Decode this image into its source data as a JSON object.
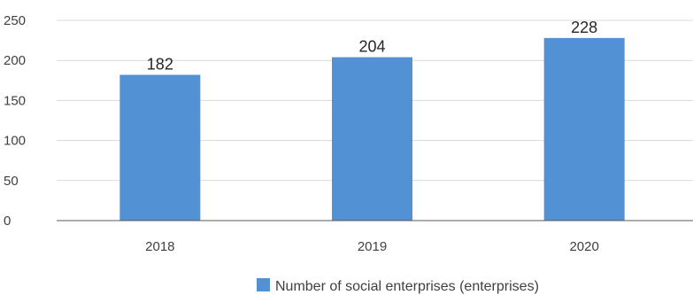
{
  "chart_data": {
    "type": "bar",
    "title": "",
    "xlabel": "",
    "ylabel": "",
    "categories": [
      "2018",
      "2019",
      "2020"
    ],
    "series": [
      {
        "name": "Number of social enterprises (enterprises)",
        "values": [
          182,
          204,
          228
        ],
        "color": "#5291D3"
      }
    ],
    "ylim": [
      0,
      250
    ],
    "yticks": [
      0,
      50,
      100,
      150,
      200,
      250
    ],
    "grid": true,
    "legend_position": "bottom-center",
    "data_labels": true
  },
  "colors": {
    "gridline": "#d9d9d9",
    "axis": "#595959",
    "bar": "#5291D3"
  }
}
